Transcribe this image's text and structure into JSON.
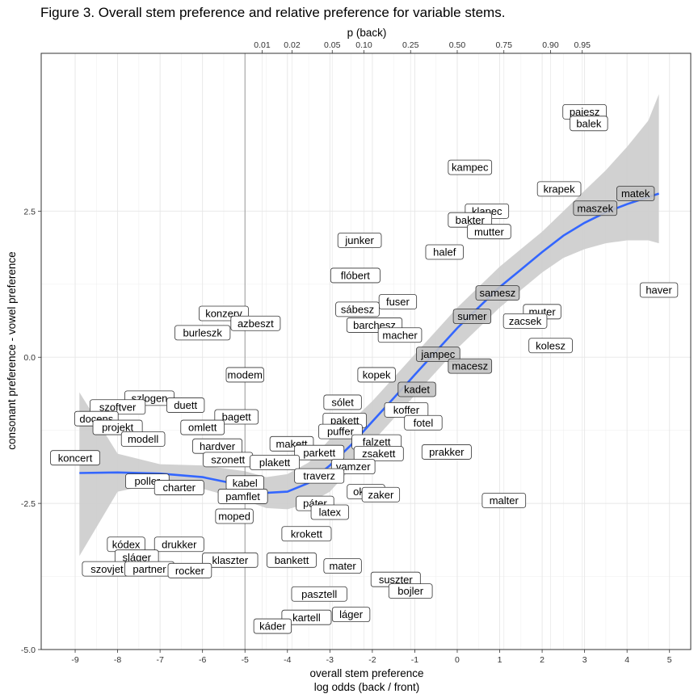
{
  "figure_title": "Figure 3. Overall stem preference and relative preference for variable stems.",
  "chart_data": {
    "type": "scatter",
    "title": "Figure 3. Overall stem preference and relative preference for variable stems.",
    "xlabel_line1": "overall stem preference",
    "xlabel_line2": "log odds (back / front)",
    "ylabel": "consonant preference - vowel preference",
    "x2label": "p (back)",
    "xlim": [
      -9.8,
      5.5
    ],
    "ylim": [
      -5.0,
      5.2
    ],
    "x_ticks": [
      -9,
      -8,
      -7,
      -6,
      -5,
      -4,
      -3,
      -2,
      -1,
      0,
      1,
      2,
      3,
      4,
      5
    ],
    "x_tick_labels": [
      "-9",
      "-8",
      "-7",
      "-6",
      "-5",
      "-4",
      "-3",
      "-2",
      "-1",
      "0",
      "1",
      "2",
      "3",
      "4",
      "5"
    ],
    "y_ticks": [
      -5.0,
      -2.5,
      0.0,
      2.5
    ],
    "y_tick_labels": [
      "-5.0",
      "-2.5",
      "0.0",
      "2.5"
    ],
    "x2_ticks": [
      0.01,
      0.02,
      0.05,
      0.1,
      0.25,
      0.5,
      0.75,
      0.9,
      0.95
    ],
    "x2_tick_labels": [
      "0.01",
      "0.02",
      "0.05",
      "0.10",
      "0.25",
      "0.50",
      "0.75",
      "0.90",
      "0.95"
    ],
    "vline_x": -5,
    "grid": true,
    "smooth": {
      "x": [
        -8.9,
        -8,
        -7,
        -6,
        -5,
        -4.5,
        -4,
        -3.5,
        -3,
        -2.5,
        -2,
        -1.5,
        -1,
        -0.5,
        0,
        0.5,
        1,
        1.5,
        2,
        2.5,
        3,
        3.5,
        4,
        4.5,
        4.75
      ],
      "y": [
        -1.98,
        -1.97,
        -1.99,
        -2.05,
        -2.2,
        -2.32,
        -2.3,
        -2.15,
        -1.85,
        -1.5,
        -1.1,
        -0.7,
        -0.3,
        0.1,
        0.5,
        0.85,
        1.2,
        1.5,
        1.8,
        2.08,
        2.3,
        2.48,
        2.62,
        2.74,
        2.8
      ],
      "lower": [
        -3.4,
        -2.3,
        -2.15,
        -2.25,
        -2.45,
        -2.58,
        -2.6,
        -2.5,
        -2.3,
        -1.9,
        -1.45,
        -1.05,
        -0.65,
        -0.25,
        0.15,
        0.5,
        0.85,
        1.15,
        1.45,
        1.7,
        1.85,
        1.95,
        2.0,
        2.0,
        1.95
      ],
      "upper": [
        -0.6,
        -1.65,
        -1.83,
        -1.85,
        -1.95,
        -2.05,
        -2.0,
        -1.8,
        -1.4,
        -1.1,
        -0.75,
        -0.35,
        0.05,
        0.45,
        0.85,
        1.2,
        1.55,
        1.85,
        2.15,
        2.5,
        2.85,
        3.2,
        3.6,
        4.05,
        4.5
      ]
    },
    "points": [
      {
        "label": "pajesz",
        "x": 3.0,
        "y": 4.2,
        "faded": false
      },
      {
        "label": "balek",
        "x": 3.1,
        "y": 4.0,
        "faded": false
      },
      {
        "label": "kampec",
        "x": 0.3,
        "y": 3.25,
        "faded": false
      },
      {
        "label": "krapek",
        "x": 2.4,
        "y": 2.88,
        "faded": false
      },
      {
        "label": "matek",
        "x": 4.2,
        "y": 2.8,
        "faded": true
      },
      {
        "label": "maszek",
        "x": 3.25,
        "y": 2.55,
        "faded": true
      },
      {
        "label": "klapec",
        "x": 0.7,
        "y": 2.5,
        "faded": false
      },
      {
        "label": "bakter",
        "x": 0.3,
        "y": 2.35,
        "faded": false
      },
      {
        "label": "mutter",
        "x": 0.75,
        "y": 2.15,
        "faded": false
      },
      {
        "label": "junker",
        "x": -2.3,
        "y": 2.0,
        "faded": false
      },
      {
        "label": "halef",
        "x": -0.3,
        "y": 1.8,
        "faded": false
      },
      {
        "label": "flóbert",
        "x": -2.4,
        "y": 1.4,
        "faded": false
      },
      {
        "label": "samesz",
        "x": 0.95,
        "y": 1.1,
        "faded": true
      },
      {
        "label": "haver",
        "x": 4.75,
        "y": 1.15,
        "faded": false
      },
      {
        "label": "fuser",
        "x": -1.4,
        "y": 0.95,
        "faded": false
      },
      {
        "label": "sábesz",
        "x": -2.35,
        "y": 0.82,
        "faded": false
      },
      {
        "label": "muter",
        "x": 2.0,
        "y": 0.78,
        "faded": false
      },
      {
        "label": "sumer",
        "x": 0.35,
        "y": 0.7,
        "faded": true
      },
      {
        "label": "zacsek",
        "x": 1.6,
        "y": 0.62,
        "faded": false
      },
      {
        "label": "konzerv",
        "x": -5.5,
        "y": 0.75,
        "faded": false
      },
      {
        "label": "azbeszt",
        "x": -4.75,
        "y": 0.58,
        "faded": false
      },
      {
        "label": "barchesz",
        "x": -1.95,
        "y": 0.55,
        "faded": false
      },
      {
        "label": "burleszk",
        "x": -6.0,
        "y": 0.42,
        "faded": false
      },
      {
        "label": "macher",
        "x": -1.35,
        "y": 0.38,
        "faded": false
      },
      {
        "label": "kolesz",
        "x": 2.2,
        "y": 0.2,
        "faded": false
      },
      {
        "label": "jampec",
        "x": -0.45,
        "y": 0.05,
        "faded": true
      },
      {
        "label": "macesz",
        "x": 0.3,
        "y": -0.15,
        "faded": true
      },
      {
        "label": "modem",
        "x": -5.0,
        "y": -0.3,
        "faded": false
      },
      {
        "label": "kopek",
        "x": -1.9,
        "y": -0.3,
        "faded": false
      },
      {
        "label": "kadet",
        "x": -0.95,
        "y": -0.55,
        "faded": true
      },
      {
        "label": "szlogen",
        "x": -7.25,
        "y": -0.7,
        "faded": false
      },
      {
        "label": "sólet",
        "x": -2.7,
        "y": -0.77,
        "faded": false
      },
      {
        "label": "szoftver",
        "x": -8.0,
        "y": -0.85,
        "faded": false
      },
      {
        "label": "duett",
        "x": -6.4,
        "y": -0.82,
        "faded": false
      },
      {
        "label": "koffer",
        "x": -1.2,
        "y": -0.9,
        "faded": false
      },
      {
        "label": "bagett",
        "x": -5.2,
        "y": -1.02,
        "faded": false
      },
      {
        "label": "docens",
        "x": -8.5,
        "y": -1.05,
        "faded": false
      },
      {
        "label": "pakett",
        "x": -2.65,
        "y": -1.08,
        "faded": false
      },
      {
        "label": "fotel",
        "x": -0.8,
        "y": -1.12,
        "faded": false
      },
      {
        "label": "projekt",
        "x": -8.0,
        "y": -1.2,
        "faded": false
      },
      {
        "label": "omlett",
        "x": -6.0,
        "y": -1.2,
        "faded": false
      },
      {
        "label": "puffer",
        "x": -2.75,
        "y": -1.27,
        "faded": false
      },
      {
        "label": "modell",
        "x": -7.4,
        "y": -1.4,
        "faded": false
      },
      {
        "label": "falzett",
        "x": -1.9,
        "y": -1.45,
        "faded": false
      },
      {
        "label": "makett",
        "x": -3.9,
        "y": -1.48,
        "faded": false
      },
      {
        "label": "hardver",
        "x": -5.65,
        "y": -1.52,
        "faded": false
      },
      {
        "label": "parkett",
        "x": -3.25,
        "y": -1.63,
        "faded": false
      },
      {
        "label": "zsakett",
        "x": -1.85,
        "y": -1.65,
        "faded": false
      },
      {
        "label": "prakker",
        "x": -0.25,
        "y": -1.62,
        "faded": false
      },
      {
        "label": "koncert",
        "x": -9.0,
        "y": -1.72,
        "faded": false
      },
      {
        "label": "szonett",
        "x": -5.4,
        "y": -1.75,
        "faded": false
      },
      {
        "label": "plakett",
        "x": -4.3,
        "y": -1.8,
        "faded": false
      },
      {
        "label": "vamzer",
        "x": -2.45,
        "y": -1.87,
        "faded": false
      },
      {
        "label": "traverz",
        "x": -3.25,
        "y": -2.03,
        "faded": false
      },
      {
        "label": "poller",
        "x": -7.3,
        "y": -2.12,
        "faded": false
      },
      {
        "label": "kabel",
        "x": -5.0,
        "y": -2.15,
        "faded": false
      },
      {
        "label": "charter",
        "x": -6.55,
        "y": -2.23,
        "faded": false
      },
      {
        "label": "okker",
        "x": -2.15,
        "y": -2.3,
        "faded": false
      },
      {
        "label": "zaker",
        "x": -1.8,
        "y": -2.35,
        "faded": false
      },
      {
        "label": "pamflet",
        "x": -5.05,
        "y": -2.38,
        "faded": false
      },
      {
        "label": "malter",
        "x": 1.1,
        "y": -2.45,
        "faded": false
      },
      {
        "label": "páter",
        "x": -3.35,
        "y": -2.5,
        "faded": false
      },
      {
        "label": "latex",
        "x": -3.0,
        "y": -2.65,
        "faded": false
      },
      {
        "label": "moped",
        "x": -5.25,
        "y": -2.72,
        "faded": false
      },
      {
        "label": "krokett",
        "x": -3.55,
        "y": -3.02,
        "faded": false
      },
      {
        "label": "kódex",
        "x": -7.8,
        "y": -3.2,
        "faded": false
      },
      {
        "label": "drukker",
        "x": -6.55,
        "y": -3.2,
        "faded": false
      },
      {
        "label": "sláger",
        "x": -7.55,
        "y": -3.42,
        "faded": false
      },
      {
        "label": "klaszter",
        "x": -5.35,
        "y": -3.47,
        "faded": false
      },
      {
        "label": "bankett",
        "x": -3.9,
        "y": -3.47,
        "faded": false
      },
      {
        "label": "mater",
        "x": -2.7,
        "y": -3.57,
        "faded": false
      },
      {
        "label": "szovjet",
        "x": -8.25,
        "y": -3.62,
        "faded": false
      },
      {
        "label": "partner",
        "x": -7.25,
        "y": -3.62,
        "faded": false
      },
      {
        "label": "rocker",
        "x": -6.3,
        "y": -3.65,
        "faded": false
      },
      {
        "label": "suszter",
        "x": -1.45,
        "y": -3.8,
        "faded": false
      },
      {
        "label": "bojler",
        "x": -1.1,
        "y": -4.0,
        "faded": false
      },
      {
        "label": "pasztell",
        "x": -3.25,
        "y": -4.05,
        "faded": false
      },
      {
        "label": "láger",
        "x": -2.5,
        "y": -4.4,
        "faded": false
      },
      {
        "label": "kartell",
        "x": -3.55,
        "y": -4.45,
        "faded": false
      },
      {
        "label": "káder",
        "x": -4.35,
        "y": -4.6,
        "faded": false
      }
    ]
  }
}
